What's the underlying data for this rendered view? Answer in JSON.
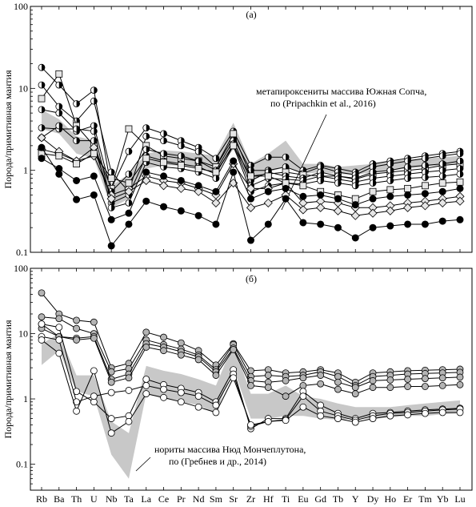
{
  "chart_data": [
    {
      "type": "line",
      "panel_label": "(а)",
      "ylabel": "Порода/примитивная мантия",
      "yscale": "log",
      "ylim": [
        0.1,
        100
      ],
      "yticks": [
        "0.1",
        "1",
        "10",
        "100"
      ],
      "categories": [
        "Rb",
        "Ba",
        "Th",
        "U",
        "Nb",
        "Ta",
        "La",
        "Ce",
        "Pr",
        "Nd",
        "Sm",
        "Sr",
        "Zr",
        "Hf",
        "Ti",
        "Eu",
        "Gd",
        "Tb",
        "Y",
        "Dy",
        "Ho",
        "Er",
        "Tm",
        "Yb",
        "Lu"
      ],
      "annotation": "метапироксениты массива Южная Сопча,\nпо (Pripachkin et al., 2016)",
      "band": {
        "upper": [
          5.5,
          4.2,
          2.6,
          2.3,
          0.65,
          0.9,
          1.6,
          1.75,
          1.7,
          1.6,
          1.5,
          3.8,
          1.2,
          1.6,
          2.3,
          1.2,
          1.2,
          1.1,
          1.15,
          1.2,
          1.3,
          1.35,
          1.4,
          1.45,
          1.5
        ],
        "lower": [
          3.2,
          2.8,
          1.6,
          1.4,
          0.35,
          0.45,
          1.05,
          1.15,
          1.15,
          1.1,
          0.95,
          1.8,
          0.72,
          0.95,
          1.1,
          0.9,
          0.95,
          0.9,
          0.88,
          0.95,
          1.0,
          1.05,
          1.1,
          1.15,
          1.2
        ]
      },
      "series": [
        {
          "marker": "half-black",
          "values": [
            18,
            11,
            6.5,
            9.5,
            0.6,
            1.7,
            3.3,
            2.8,
            2.3,
            1.9,
            1.4,
            3.0,
            1.15,
            1.45,
            1.45,
            1.0,
            1.15,
            1.05,
            0.95,
            1.2,
            1.3,
            1.4,
            1.5,
            1.6,
            1.7
          ]
        },
        {
          "marker": "half-black",
          "values": [
            11,
            6,
            4,
            7,
            0.95,
            0.55,
            2.6,
            2.3,
            2.0,
            1.7,
            1.1,
            2.5,
            1.0,
            1.0,
            1.1,
            0.92,
            1.1,
            0.95,
            0.88,
            1.1,
            1.2,
            1.3,
            1.4,
            1.5,
            1.6
          ]
        },
        {
          "marker": "square-open",
          "values": [
            7.5,
            15,
            3.5,
            2,
            0.6,
            3.2,
            2.0,
            1.5,
            1.4,
            1.3,
            1.1,
            2.8,
            0.85,
            0.9,
            0.95,
            0.88,
            0.85,
            0.85,
            0.78,
            0.9,
            0.95,
            1.0,
            1.05,
            1.15,
            1.2
          ]
        },
        {
          "marker": "half-black",
          "values": [
            5.5,
            5,
            3,
            3.5,
            0.55,
            0.9,
            1.8,
            1.6,
            1.5,
            1.3,
            1.0,
            2.3,
            0.75,
            0.95,
            0.85,
            0.8,
            0.95,
            0.85,
            0.8,
            0.95,
            1.0,
            1.1,
            1.15,
            1.2,
            1.3
          ]
        },
        {
          "marker": "half-black",
          "values": [
            3.3,
            3.2,
            3.2,
            3,
            0.4,
            0.5,
            1.5,
            1.3,
            1.2,
            1.1,
            0.9,
            2.1,
            0.65,
            0.8,
            0.78,
            0.75,
            0.85,
            0.78,
            0.72,
            0.8,
            0.85,
            0.9,
            0.95,
            1.0,
            1.05
          ]
        },
        {
          "marker": "half-black",
          "values": [
            2.5,
            3.5,
            2.3,
            2.3,
            0.35,
            0.4,
            1.25,
            1.1,
            1.05,
            0.95,
            0.8,
            2.0,
            0.55,
            0.65,
            0.7,
            0.68,
            0.75,
            0.7,
            0.65,
            0.7,
            0.75,
            0.8,
            0.82,
            0.85,
            0.9
          ]
        },
        {
          "marker": "diamond-open",
          "values": [
            1.8,
            1.6,
            1.3,
            1.5,
            0.5,
            0.6,
            0.85,
            0.75,
            0.7,
            0.6,
            0.5,
            1.2,
            0.6,
            0.6,
            0.7,
            0.4,
            0.42,
            0.4,
            0.35,
            0.35,
            0.37,
            0.4,
            0.42,
            0.45,
            0.48
          ]
        },
        {
          "marker": "diamond-open",
          "values": [
            2.5,
            1.7,
            1.3,
            1.9,
            0.45,
            0.55,
            0.75,
            0.65,
            0.6,
            0.55,
            0.4,
            0.7,
            0.35,
            0.4,
            0.5,
            0.33,
            0.35,
            0.32,
            0.28,
            0.3,
            0.32,
            0.35,
            0.37,
            0.4,
            0.42
          ]
        },
        {
          "marker": "square-open",
          "values": [
            1.6,
            1.5,
            1.2,
            1.6,
            0.8,
            0.7,
            1.4,
            1.25,
            1.15,
            1.05,
            0.95,
            2.0,
            0.85,
            0.85,
            0.7,
            0.65,
            0.55,
            0.5,
            0.45,
            0.55,
            0.58,
            0.6,
            0.65,
            0.7,
            0.72
          ]
        },
        {
          "marker": "black",
          "values": [
            1.4,
            1.05,
            0.75,
            0.85,
            0.25,
            0.3,
            0.95,
            0.85,
            0.75,
            0.65,
            0.55,
            1.3,
            0.45,
            0.55,
            0.6,
            0.48,
            0.5,
            0.45,
            0.38,
            0.45,
            0.48,
            0.5,
            0.52,
            0.55,
            0.6
          ]
        },
        {
          "marker": "black",
          "values": [
            1.9,
            0.9,
            0.44,
            0.5,
            0.12,
            0.22,
            0.42,
            0.36,
            0.32,
            0.28,
            0.22,
            0.95,
            0.14,
            0.22,
            0.45,
            0.23,
            0.22,
            0.2,
            0.15,
            0.2,
            0.21,
            0.22,
            0.22,
            0.24,
            0.25
          ]
        }
      ]
    },
    {
      "type": "line",
      "panel_label": "(б)",
      "ylabel": "Порода/примитивная мантия",
      "yscale": "log",
      "ylim": [
        0.04,
        100
      ],
      "yticks": [
        "0.1",
        "1",
        "10",
        "100"
      ],
      "categories": [
        "Rb",
        "Ba",
        "Th",
        "U",
        "Nb",
        "Ta",
        "La",
        "Ce",
        "Pr",
        "Nd",
        "Sm",
        "Sr",
        "Zr",
        "Hf",
        "Ti",
        "Eu",
        "Gd",
        "Tb",
        "Y",
        "Dy",
        "Ho",
        "Er",
        "Tm",
        "Yb",
        "Lu"
      ],
      "annotation": "нориты массива Нюд Мончеплутона,\nпо (Гребнев и др., 2014)",
      "band": {
        "upper": [
          7,
          10,
          2.3,
          2.3,
          0.45,
          0.3,
          3.2,
          2.7,
          2.4,
          2.0,
          1.6,
          7.0,
          1.2,
          1.2,
          1.6,
          1.1,
          1.0,
          0.85,
          0.75,
          0.75,
          0.75,
          0.8,
          0.85,
          0.9,
          0.95
        ],
        "lower": [
          3.3,
          5.5,
          1.3,
          1.1,
          0.14,
          0.06,
          1.2,
          1.0,
          0.9,
          0.8,
          0.6,
          3.0,
          0.5,
          0.5,
          0.55,
          0.55,
          0.5,
          0.48,
          0.5,
          0.5,
          0.52,
          0.55,
          0.55,
          0.58,
          0.6
        ]
      },
      "series": [
        {
          "marker": "gray",
          "values": [
            42,
            20,
            16,
            15,
            3.0,
            3.5,
            10.5,
            8.8,
            7.2,
            5.5,
            3.3,
            7.0,
            2.7,
            2.8,
            2.5,
            2.6,
            2.8,
            2.5,
            1.8,
            2.5,
            2.6,
            2.7,
            2.75,
            2.8,
            2.85
          ]
        },
        {
          "marker": "gray",
          "values": [
            18,
            17,
            12,
            10,
            2.6,
            2.9,
            8.0,
            6.8,
            5.8,
            4.7,
            2.8,
            6.8,
            2.2,
            2.3,
            2.2,
            2.3,
            2.6,
            2.2,
            1.6,
            2.2,
            2.3,
            2.4,
            2.45,
            2.5,
            2.55
          ]
        },
        {
          "marker": "gray",
          "values": [
            14,
            9,
            8.5,
            9,
            2.0,
            2.4,
            7.0,
            6.2,
            5.3,
            4.4,
            2.6,
            6.0,
            1.9,
            1.8,
            1.9,
            2.1,
            2.3,
            1.8,
            1.5,
            1.9,
            1.95,
            2.0,
            2.05,
            2.1,
            2.15
          ]
        },
        {
          "marker": "gray",
          "values": [
            12,
            9,
            8,
            8.5,
            1.8,
            2.1,
            6.2,
            5.5,
            4.7,
            4.0,
            2.3,
            5.7,
            1.6,
            1.5,
            1.1,
            1.6,
            1.7,
            1.4,
            1.2,
            1.5,
            1.5,
            1.55,
            1.55,
            1.6,
            1.65
          ]
        },
        {
          "marker": "white",
          "values": [
            14,
            12.5,
            1.3,
            0.9,
            0.5,
            0.55,
            2.0,
            1.65,
            1.45,
            1.25,
            0.9,
            2.8,
            0.35,
            0.5,
            0.5,
            1.3,
            0.8,
            0.6,
            0.5,
            0.6,
            0.62,
            0.65,
            0.68,
            0.7,
            0.72
          ]
        },
        {
          "marker": "white",
          "values": [
            9,
            8,
            0.9,
            1.1,
            1.25,
            1.35,
            1.6,
            1.4,
            1.25,
            1.1,
            0.8,
            2.4,
            0.38,
            0.45,
            0.48,
            1.1,
            0.65,
            0.55,
            0.47,
            0.55,
            0.6,
            0.62,
            0.65,
            0.68,
            0.7
          ]
        },
        {
          "marker": "white",
          "values": [
            8,
            5,
            0.65,
            2.7,
            0.3,
            0.45,
            1.2,
            1.05,
            0.9,
            0.75,
            0.62,
            2.1,
            0.4,
            0.45,
            0.47,
            0.75,
            0.55,
            0.5,
            0.44,
            0.5,
            0.55,
            0.57,
            0.6,
            0.62,
            0.62
          ]
        }
      ]
    }
  ]
}
